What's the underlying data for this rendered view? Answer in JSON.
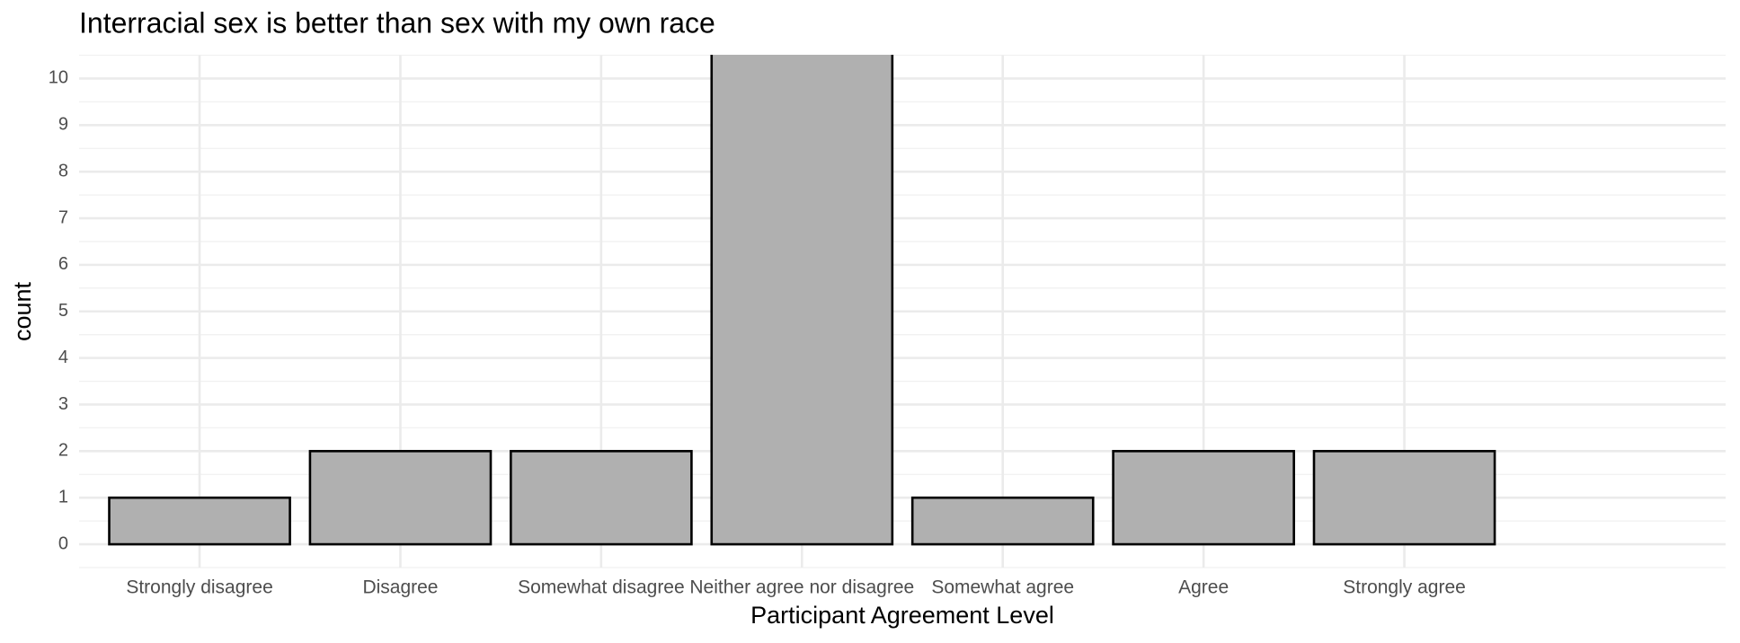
{
  "chart_data": {
    "type": "bar",
    "title": "Interracial sex is better than sex with my own race",
    "x_label": "Participant Agreement Level",
    "y_label": "count",
    "categories": [
      "Strongly disagree",
      "Disagree",
      "Somewhat disagree",
      "Neither agree nor disagree",
      "Somewhat agree",
      "Agree",
      "Strongly agree"
    ],
    "values": [
      1,
      2,
      2,
      11,
      1,
      2,
      2
    ],
    "color": "#b0b0b0",
    "edge_color": "#000000",
    "ylim": [
      -0.5,
      10.5
    ],
    "yticks": [
      0,
      1,
      2,
      3,
      4,
      5,
      6,
      7,
      8,
      9,
      10
    ],
    "grid": true
  }
}
